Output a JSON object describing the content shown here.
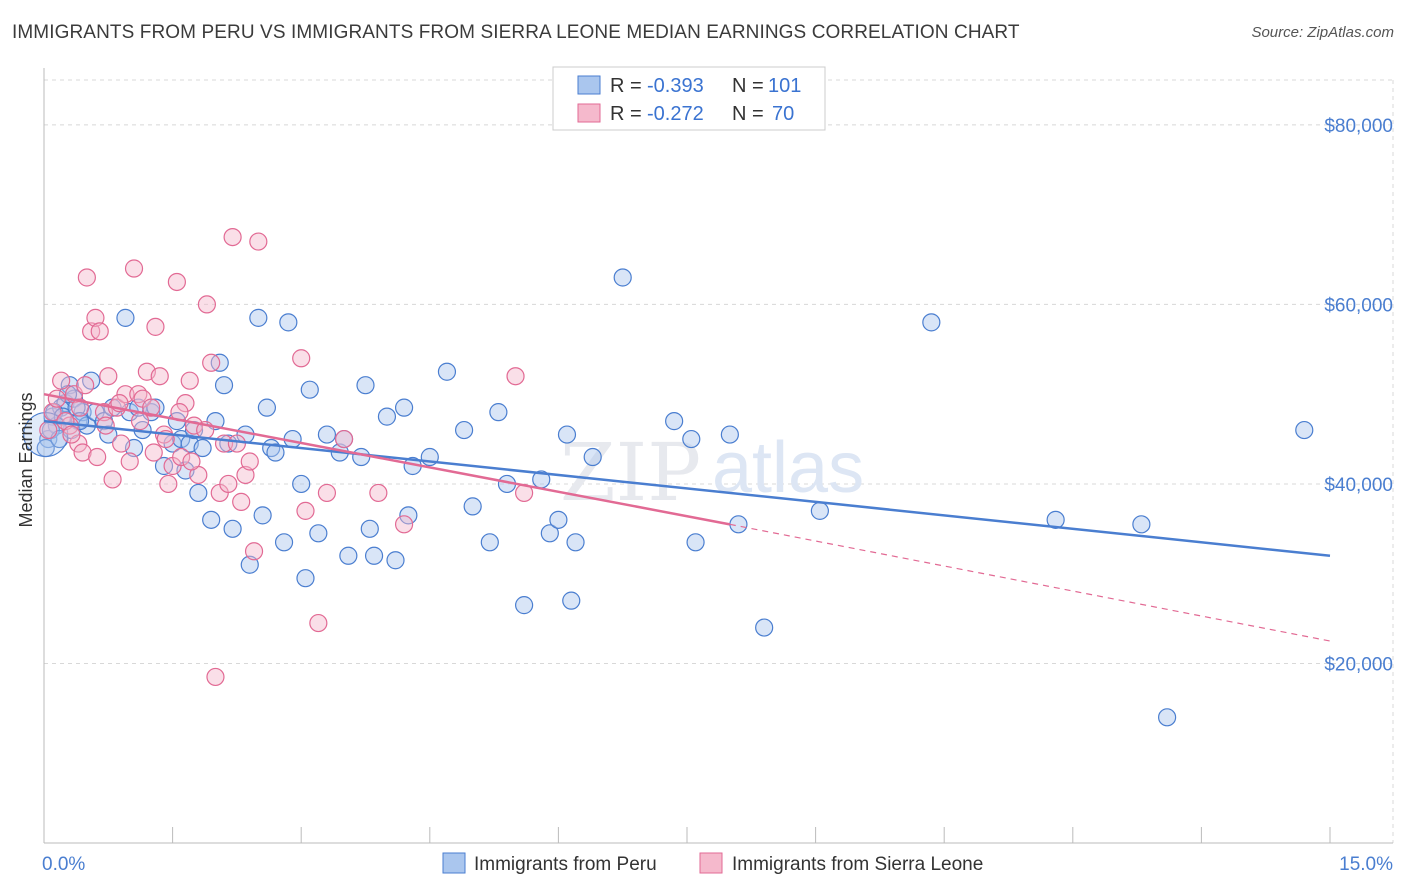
{
  "title": "IMMIGRANTS FROM PERU VS IMMIGRANTS FROM SIERRA LEONE MEDIAN EARNINGS CORRELATION CHART",
  "source": "Source: ZipAtlas.com",
  "watermark": {
    "zip": "ZIP",
    "atlas": "atlas"
  },
  "colors": {
    "peru": "#4a7ed0",
    "peru_fill": "#aac6ee",
    "sierra": "#e26a94",
    "sierra_fill": "#f5b9cc",
    "grid": "#d8d8d8"
  },
  "legend": {
    "rows": [
      {
        "r_label": "R = ",
        "r_value": "-0.393",
        "n_label": "N = ",
        "n_value": "101"
      },
      {
        "r_label": "R = ",
        "r_value": "-0.272",
        "n_label": "N = ",
        "n_value": "70"
      }
    ]
  },
  "chart_data": {
    "type": "scatter",
    "xlabel": "",
    "ylabel": "Median Earnings",
    "xlim": [
      0,
      15
    ],
    "ylim": [
      0,
      85000
    ],
    "x_tick_labels": [
      "0.0%",
      "15.0%"
    ],
    "y_ticks": [
      20000,
      40000,
      60000,
      80000
    ],
    "y_tick_labels": [
      "$20,000",
      "$40,000",
      "$60,000",
      "$80,000"
    ],
    "grid": true,
    "legend_position": "top-center",
    "series": [
      {
        "name": "Immigrants from Peru",
        "trend": {
          "x": [
            0,
            15
          ],
          "y": [
            47000,
            32000
          ]
        },
        "points": [
          [
            0.05,
            45000
          ],
          [
            0.1,
            47500
          ],
          [
            0.15,
            46500
          ],
          [
            0.2,
            48500
          ],
          [
            0.25,
            49000
          ],
          [
            0.3,
            51000
          ],
          [
            0.35,
            49500
          ],
          [
            0.4,
            47000
          ],
          [
            0.45,
            48000
          ],
          [
            0.5,
            46500
          ],
          [
            0.55,
            51500
          ],
          [
            0.6,
            48000
          ],
          [
            0.7,
            47000
          ],
          [
            0.75,
            45500
          ],
          [
            0.8,
            48500
          ],
          [
            0.95,
            58500
          ],
          [
            1.0,
            48000
          ],
          [
            1.05,
            44000
          ],
          [
            1.1,
            48500
          ],
          [
            1.15,
            46000
          ],
          [
            1.25,
            48000
          ],
          [
            1.3,
            48500
          ],
          [
            1.4,
            42000
          ],
          [
            1.5,
            44500
          ],
          [
            1.55,
            47000
          ],
          [
            1.6,
            45000
          ],
          [
            1.65,
            41500
          ],
          [
            1.7,
            44500
          ],
          [
            1.75,
            46000
          ],
          [
            1.8,
            39000
          ],
          [
            1.85,
            44000
          ],
          [
            1.95,
            36000
          ],
          [
            2.0,
            47000
          ],
          [
            2.05,
            53500
          ],
          [
            2.1,
            51000
          ],
          [
            2.15,
            44500
          ],
          [
            2.2,
            35000
          ],
          [
            2.35,
            45500
          ],
          [
            2.4,
            31000
          ],
          [
            2.5,
            58500
          ],
          [
            2.55,
            36500
          ],
          [
            2.6,
            48500
          ],
          [
            2.65,
            44000
          ],
          [
            2.7,
            43500
          ],
          [
            2.8,
            33500
          ],
          [
            2.85,
            58000
          ],
          [
            2.9,
            45000
          ],
          [
            3.0,
            40000
          ],
          [
            3.05,
            29500
          ],
          [
            3.1,
            50500
          ],
          [
            3.2,
            34500
          ],
          [
            3.3,
            45500
          ],
          [
            3.45,
            43500
          ],
          [
            3.5,
            45000
          ],
          [
            3.55,
            32000
          ],
          [
            3.7,
            43000
          ],
          [
            3.75,
            51000
          ],
          [
            3.8,
            35000
          ],
          [
            3.85,
            32000
          ],
          [
            4.0,
            47500
          ],
          [
            4.1,
            31500
          ],
          [
            4.2,
            48500
          ],
          [
            4.25,
            36500
          ],
          [
            4.3,
            42000
          ],
          [
            4.5,
            43000
          ],
          [
            4.7,
            52500
          ],
          [
            4.9,
            46000
          ],
          [
            5.0,
            37500
          ],
          [
            5.2,
            33500
          ],
          [
            5.3,
            48000
          ],
          [
            5.4,
            40000
          ],
          [
            5.6,
            26500
          ],
          [
            5.8,
            40500
          ],
          [
            5.9,
            34500
          ],
          [
            6.0,
            36000
          ],
          [
            6.1,
            45500
          ],
          [
            6.15,
            27000
          ],
          [
            6.2,
            33500
          ],
          [
            6.4,
            43000
          ],
          [
            6.75,
            63000
          ],
          [
            7.35,
            47000
          ],
          [
            7.55,
            45000
          ],
          [
            7.6,
            33500
          ],
          [
            8.0,
            45500
          ],
          [
            8.1,
            35500
          ],
          [
            8.4,
            24000
          ],
          [
            9.05,
            37000
          ],
          [
            10.35,
            58000
          ],
          [
            11.8,
            36000
          ],
          [
            12.8,
            35500
          ],
          [
            13.1,
            14000
          ],
          [
            14.7,
            46000
          ],
          [
            0.02,
            44000
          ],
          [
            0.08,
            46000
          ],
          [
            0.12,
            48000
          ],
          [
            0.18,
            45000
          ],
          [
            0.22,
            47500
          ],
          [
            0.28,
            50000
          ],
          [
            0.32,
            46000
          ],
          [
            0.38,
            48500
          ],
          [
            0.42,
            47000
          ]
        ]
      },
      {
        "name": "Immigrants from Sierra Leone",
        "trend": {
          "x": [
            0,
            8
          ],
          "y": [
            50000,
            35500
          ]
        },
        "trend_extension": {
          "x": [
            8,
            15
          ],
          "y": [
            35500,
            22500
          ]
        },
        "points": [
          [
            0.05,
            46000
          ],
          [
            0.1,
            48000
          ],
          [
            0.2,
            51500
          ],
          [
            0.3,
            46500
          ],
          [
            0.35,
            50000
          ],
          [
            0.4,
            44500
          ],
          [
            0.45,
            43500
          ],
          [
            0.5,
            63000
          ],
          [
            0.55,
            57000
          ],
          [
            0.6,
            58500
          ],
          [
            0.65,
            57000
          ],
          [
            0.7,
            48000
          ],
          [
            0.75,
            52000
          ],
          [
            0.8,
            40500
          ],
          [
            0.85,
            48500
          ],
          [
            0.9,
            44500
          ],
          [
            0.95,
            50000
          ],
          [
            1.0,
            42500
          ],
          [
            1.05,
            64000
          ],
          [
            1.1,
            50000
          ],
          [
            1.15,
            49500
          ],
          [
            1.2,
            52500
          ],
          [
            1.25,
            48500
          ],
          [
            1.3,
            57500
          ],
          [
            1.35,
            52000
          ],
          [
            1.4,
            45500
          ],
          [
            1.45,
            40000
          ],
          [
            1.5,
            42000
          ],
          [
            1.55,
            62500
          ],
          [
            1.6,
            43000
          ],
          [
            1.65,
            49000
          ],
          [
            1.7,
            51500
          ],
          [
            1.75,
            46500
          ],
          [
            1.8,
            41000
          ],
          [
            1.9,
            60000
          ],
          [
            1.95,
            53500
          ],
          [
            2.0,
            18500
          ],
          [
            2.05,
            39000
          ],
          [
            2.1,
            44500
          ],
          [
            2.15,
            40000
          ],
          [
            2.2,
            67500
          ],
          [
            2.3,
            38000
          ],
          [
            2.35,
            41000
          ],
          [
            2.4,
            42500
          ],
          [
            2.45,
            32500
          ],
          [
            2.5,
            67000
          ],
          [
            3.0,
            54000
          ],
          [
            3.05,
            37000
          ],
          [
            3.2,
            24500
          ],
          [
            3.3,
            39000
          ],
          [
            3.5,
            45000
          ],
          [
            3.9,
            39000
          ],
          [
            4.2,
            35500
          ],
          [
            5.5,
            52000
          ],
          [
            5.6,
            39000
          ],
          [
            0.15,
            49500
          ],
          [
            0.25,
            47000
          ],
          [
            0.32,
            45500
          ],
          [
            0.42,
            48500
          ],
          [
            0.48,
            51000
          ],
          [
            0.62,
            43000
          ],
          [
            0.72,
            46500
          ],
          [
            0.88,
            49000
          ],
          [
            1.12,
            47000
          ],
          [
            1.28,
            43500
          ],
          [
            1.42,
            45000
          ],
          [
            1.58,
            48000
          ],
          [
            1.72,
            42500
          ],
          [
            1.88,
            46000
          ],
          [
            2.25,
            44500
          ]
        ]
      }
    ]
  }
}
